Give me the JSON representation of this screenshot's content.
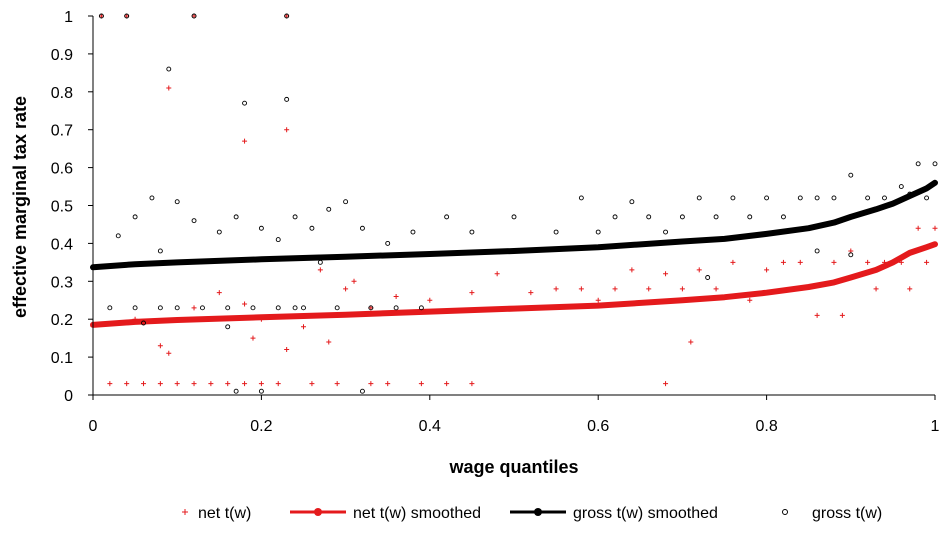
{
  "chart_data": {
    "type": "scatter",
    "xlabel": "wage quantiles",
    "ylabel": "effective marginal tax rate",
    "xlim": [
      0,
      1
    ],
    "ylim": [
      0,
      1
    ],
    "x_ticks": [
      "0",
      "0.2",
      "0.4",
      "0.6",
      "0.8",
      "1"
    ],
    "x_tick_values": [
      0,
      0.2,
      0.4,
      0.6,
      0.8,
      1
    ],
    "y_ticks": [
      "0",
      "0.1",
      "0.2",
      "0.3",
      "0.4",
      "0.5",
      "0.6",
      "0.7",
      "0.8",
      "0.9",
      "1"
    ],
    "y_tick_values": [
      0,
      0.1,
      0.2,
      0.3,
      0.4,
      0.5,
      0.6,
      0.7,
      0.8,
      0.9,
      1
    ],
    "grid": false,
    "legend_position": "bottom",
    "series": [
      {
        "name": "net t(w)",
        "kind": "scatter",
        "marker": "plus",
        "color": "#e41a1c",
        "points": [
          [
            0.01,
            1.0
          ],
          [
            0.04,
            1.0
          ],
          [
            0.12,
            1.0
          ],
          [
            0.23,
            1.0
          ],
          [
            0.09,
            0.81
          ],
          [
            0.18,
            0.67
          ],
          [
            0.23,
            0.7
          ],
          [
            0.02,
            0.03
          ],
          [
            0.04,
            0.03
          ],
          [
            0.06,
            0.03
          ],
          [
            0.08,
            0.03
          ],
          [
            0.1,
            0.03
          ],
          [
            0.12,
            0.03
          ],
          [
            0.14,
            0.03
          ],
          [
            0.16,
            0.03
          ],
          [
            0.18,
            0.03
          ],
          [
            0.2,
            0.03
          ],
          [
            0.22,
            0.03
          ],
          [
            0.26,
            0.03
          ],
          [
            0.29,
            0.03
          ],
          [
            0.33,
            0.03
          ],
          [
            0.35,
            0.03
          ],
          [
            0.39,
            0.03
          ],
          [
            0.42,
            0.03
          ],
          [
            0.45,
            0.03
          ],
          [
            0.68,
            0.03
          ],
          [
            0.05,
            0.2
          ],
          [
            0.08,
            0.13
          ],
          [
            0.09,
            0.11
          ],
          [
            0.12,
            0.23
          ],
          [
            0.15,
            0.27
          ],
          [
            0.18,
            0.24
          ],
          [
            0.19,
            0.15
          ],
          [
            0.2,
            0.2
          ],
          [
            0.23,
            0.12
          ],
          [
            0.25,
            0.18
          ],
          [
            0.27,
            0.33
          ],
          [
            0.28,
            0.14
          ],
          [
            0.3,
            0.28
          ],
          [
            0.31,
            0.3
          ],
          [
            0.33,
            0.23
          ],
          [
            0.36,
            0.26
          ],
          [
            0.4,
            0.25
          ],
          [
            0.45,
            0.27
          ],
          [
            0.48,
            0.32
          ],
          [
            0.52,
            0.27
          ],
          [
            0.55,
            0.28
          ],
          [
            0.58,
            0.28
          ],
          [
            0.6,
            0.25
          ],
          [
            0.62,
            0.28
          ],
          [
            0.64,
            0.33
          ],
          [
            0.66,
            0.28
          ],
          [
            0.68,
            0.32
          ],
          [
            0.7,
            0.28
          ],
          [
            0.71,
            0.14
          ],
          [
            0.72,
            0.33
          ],
          [
            0.74,
            0.28
          ],
          [
            0.76,
            0.35
          ],
          [
            0.78,
            0.25
          ],
          [
            0.8,
            0.33
          ],
          [
            0.82,
            0.35
          ],
          [
            0.84,
            0.35
          ],
          [
            0.86,
            0.21
          ],
          [
            0.88,
            0.35
          ],
          [
            0.89,
            0.21
          ],
          [
            0.9,
            0.38
          ],
          [
            0.92,
            0.35
          ],
          [
            0.94,
            0.35
          ],
          [
            0.96,
            0.35
          ],
          [
            0.97,
            0.28
          ],
          [
            0.98,
            0.44
          ],
          [
            0.99,
            0.35
          ],
          [
            1.0,
            0.44
          ],
          [
            0.93,
            0.28
          ]
        ]
      },
      {
        "name": "net t(w) smoothed",
        "kind": "line",
        "color": "#e41a1c",
        "points": [
          [
            0.0,
            0.185
          ],
          [
            0.05,
            0.193
          ],
          [
            0.1,
            0.198
          ],
          [
            0.2,
            0.205
          ],
          [
            0.3,
            0.212
          ],
          [
            0.4,
            0.22
          ],
          [
            0.5,
            0.228
          ],
          [
            0.6,
            0.236
          ],
          [
            0.7,
            0.25
          ],
          [
            0.75,
            0.258
          ],
          [
            0.8,
            0.27
          ],
          [
            0.85,
            0.285
          ],
          [
            0.88,
            0.297
          ],
          [
            0.9,
            0.31
          ],
          [
            0.93,
            0.33
          ],
          [
            0.95,
            0.35
          ],
          [
            0.97,
            0.375
          ],
          [
            0.99,
            0.39
          ],
          [
            1.0,
            0.398
          ]
        ]
      },
      {
        "name": "gross t(w) smoothed",
        "kind": "line",
        "color": "#000000",
        "points": [
          [
            0.0,
            0.337
          ],
          [
            0.05,
            0.345
          ],
          [
            0.1,
            0.35
          ],
          [
            0.2,
            0.358
          ],
          [
            0.3,
            0.365
          ],
          [
            0.4,
            0.372
          ],
          [
            0.5,
            0.38
          ],
          [
            0.6,
            0.39
          ],
          [
            0.7,
            0.405
          ],
          [
            0.75,
            0.412
          ],
          [
            0.8,
            0.425
          ],
          [
            0.85,
            0.44
          ],
          [
            0.88,
            0.455
          ],
          [
            0.9,
            0.47
          ],
          [
            0.93,
            0.49
          ],
          [
            0.95,
            0.505
          ],
          [
            0.97,
            0.525
          ],
          [
            0.99,
            0.545
          ],
          [
            1.0,
            0.56
          ]
        ]
      },
      {
        "name": "gross t(w)",
        "kind": "scatter",
        "marker": "circle",
        "color": "#000000",
        "points": [
          [
            0.01,
            1.0
          ],
          [
            0.04,
            1.0
          ],
          [
            0.12,
            1.0
          ],
          [
            0.23,
            1.0
          ],
          [
            0.09,
            0.86
          ],
          [
            0.18,
            0.77
          ],
          [
            0.23,
            0.78
          ],
          [
            0.03,
            0.42
          ],
          [
            0.05,
            0.47
          ],
          [
            0.07,
            0.52
          ],
          [
            0.08,
            0.38
          ],
          [
            0.1,
            0.51
          ],
          [
            0.12,
            0.46
          ],
          [
            0.15,
            0.43
          ],
          [
            0.17,
            0.47
          ],
          [
            0.2,
            0.44
          ],
          [
            0.22,
            0.41
          ],
          [
            0.24,
            0.47
          ],
          [
            0.26,
            0.44
          ],
          [
            0.28,
            0.49
          ],
          [
            0.3,
            0.51
          ],
          [
            0.32,
            0.44
          ],
          [
            0.35,
            0.4
          ],
          [
            0.38,
            0.43
          ],
          [
            0.42,
            0.47
          ],
          [
            0.45,
            0.43
          ],
          [
            0.5,
            0.47
          ],
          [
            0.55,
            0.43
          ],
          [
            0.58,
            0.52
          ],
          [
            0.6,
            0.43
          ],
          [
            0.62,
            0.47
          ],
          [
            0.64,
            0.51
          ],
          [
            0.66,
            0.47
          ],
          [
            0.68,
            0.43
          ],
          [
            0.7,
            0.47
          ],
          [
            0.72,
            0.52
          ],
          [
            0.74,
            0.47
          ],
          [
            0.76,
            0.52
          ],
          [
            0.78,
            0.47
          ],
          [
            0.8,
            0.52
          ],
          [
            0.82,
            0.47
          ],
          [
            0.84,
            0.52
          ],
          [
            0.86,
            0.52
          ],
          [
            0.88,
            0.52
          ],
          [
            0.9,
            0.58
          ],
          [
            0.92,
            0.52
          ],
          [
            0.94,
            0.52
          ],
          [
            0.96,
            0.55
          ],
          [
            0.98,
            0.61
          ],
          [
            1.0,
            0.61
          ],
          [
            0.02,
            0.23
          ],
          [
            0.05,
            0.23
          ],
          [
            0.08,
            0.23
          ],
          [
            0.1,
            0.23
          ],
          [
            0.13,
            0.23
          ],
          [
            0.16,
            0.23
          ],
          [
            0.19,
            0.23
          ],
          [
            0.22,
            0.23
          ],
          [
            0.25,
            0.23
          ],
          [
            0.29,
            0.23
          ],
          [
            0.33,
            0.23
          ],
          [
            0.36,
            0.23
          ],
          [
            0.17,
            0.01
          ],
          [
            0.2,
            0.01
          ],
          [
            0.32,
            0.01
          ],
          [
            0.06,
            0.19
          ],
          [
            0.16,
            0.18
          ],
          [
            0.24,
            0.23
          ],
          [
            0.27,
            0.35
          ],
          [
            0.39,
            0.23
          ],
          [
            0.73,
            0.31
          ],
          [
            0.86,
            0.38
          ],
          [
            0.9,
            0.37
          ],
          [
            0.97,
            0.53
          ],
          [
            0.99,
            0.52
          ]
        ]
      }
    ]
  },
  "legend": {
    "items": [
      {
        "label": "net t(w)",
        "symbol": "plus",
        "color": "#e41a1c"
      },
      {
        "label": "net t(w) smoothed",
        "symbol": "line",
        "color": "#e41a1c"
      },
      {
        "label": "gross t(w) smoothed",
        "symbol": "line",
        "color": "#000000"
      },
      {
        "label": "gross t(w)",
        "symbol": "circle",
        "color": "#000000"
      }
    ]
  }
}
